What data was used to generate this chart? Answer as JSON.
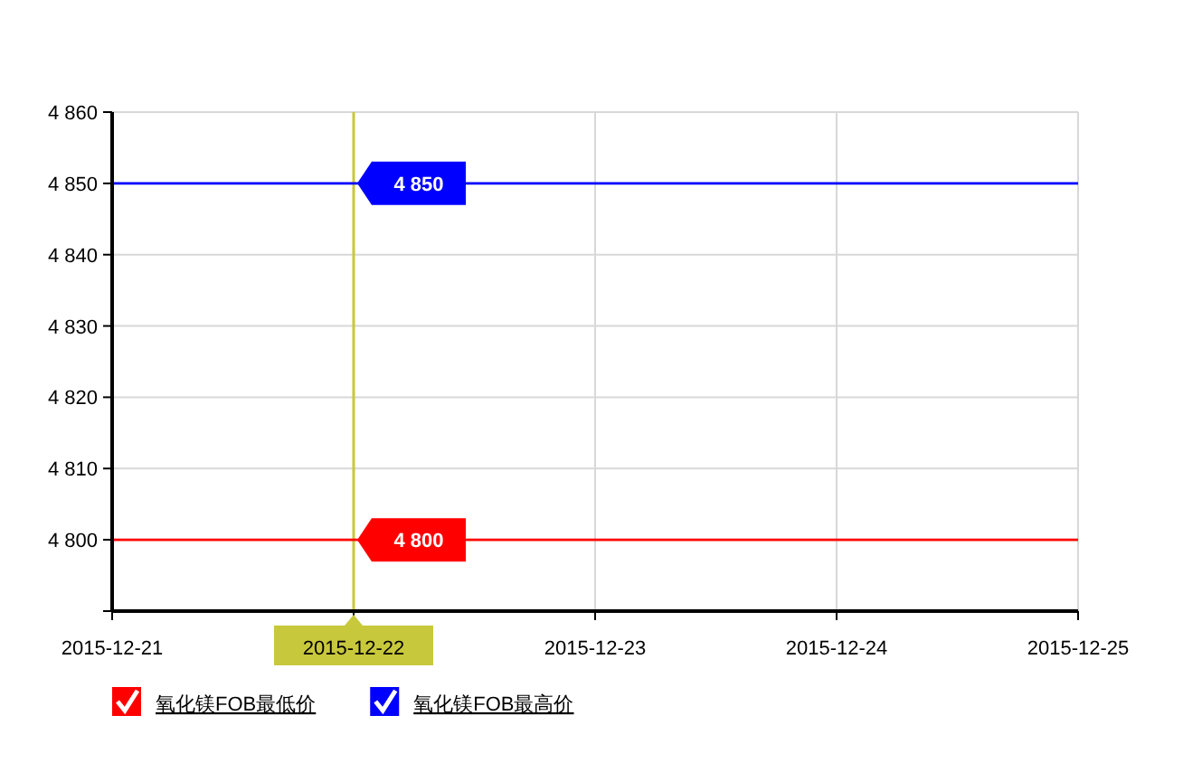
{
  "chart_data": {
    "type": "line",
    "x": [
      "2015-12-21",
      "2015-12-22",
      "2015-12-23",
      "2015-12-24",
      "2015-12-25"
    ],
    "series": [
      {
        "name": "氧化镁FOB最低价",
        "color": "#ff0000",
        "values": [
          4800,
          4800,
          4800,
          4800,
          4800
        ]
      },
      {
        "name": "氧化镁FOB最高价",
        "color": "#0000ff",
        "values": [
          4850,
          4850,
          4850,
          4850,
          4850
        ]
      }
    ],
    "xlim": [
      "2015-12-21",
      "2015-12-25"
    ],
    "xticks": [
      {
        "value": "2015-12-21",
        "label": "2015-12-21"
      },
      {
        "value": "2015-12-22",
        "label": "2015-12-22"
      },
      {
        "value": "2015-12-23",
        "label": "2015-12-23"
      },
      {
        "value": "2015-12-24",
        "label": "2015-12-24"
      },
      {
        "value": "2015-12-25",
        "label": "2015-12-25"
      }
    ],
    "ylim": [
      4790,
      4860
    ],
    "yticks": [
      {
        "value": 4790,
        "label": null
      },
      {
        "value": 4800,
        "label": "4 800"
      },
      {
        "value": 4810,
        "label": "4 810"
      },
      {
        "value": 4820,
        "label": "4 820"
      },
      {
        "value": 4830,
        "label": "4 830"
      },
      {
        "value": 4840,
        "label": "4 840"
      },
      {
        "value": 4850,
        "label": "4 850"
      },
      {
        "value": 4860,
        "label": "4 860"
      }
    ],
    "ref_lines": [
      {
        "axis": "x",
        "value": "2015-12-22",
        "color": "#c8c83c"
      }
    ],
    "annotations": [
      {
        "text": "4 850",
        "x": "2015-12-22",
        "y": 4850
      },
      {
        "text": "4 800",
        "x": "2015-12-22",
        "y": 4800
      }
    ],
    "grid": true,
    "legend": "bottom",
    "marker": "none",
    "line_style": "solid"
  }
}
